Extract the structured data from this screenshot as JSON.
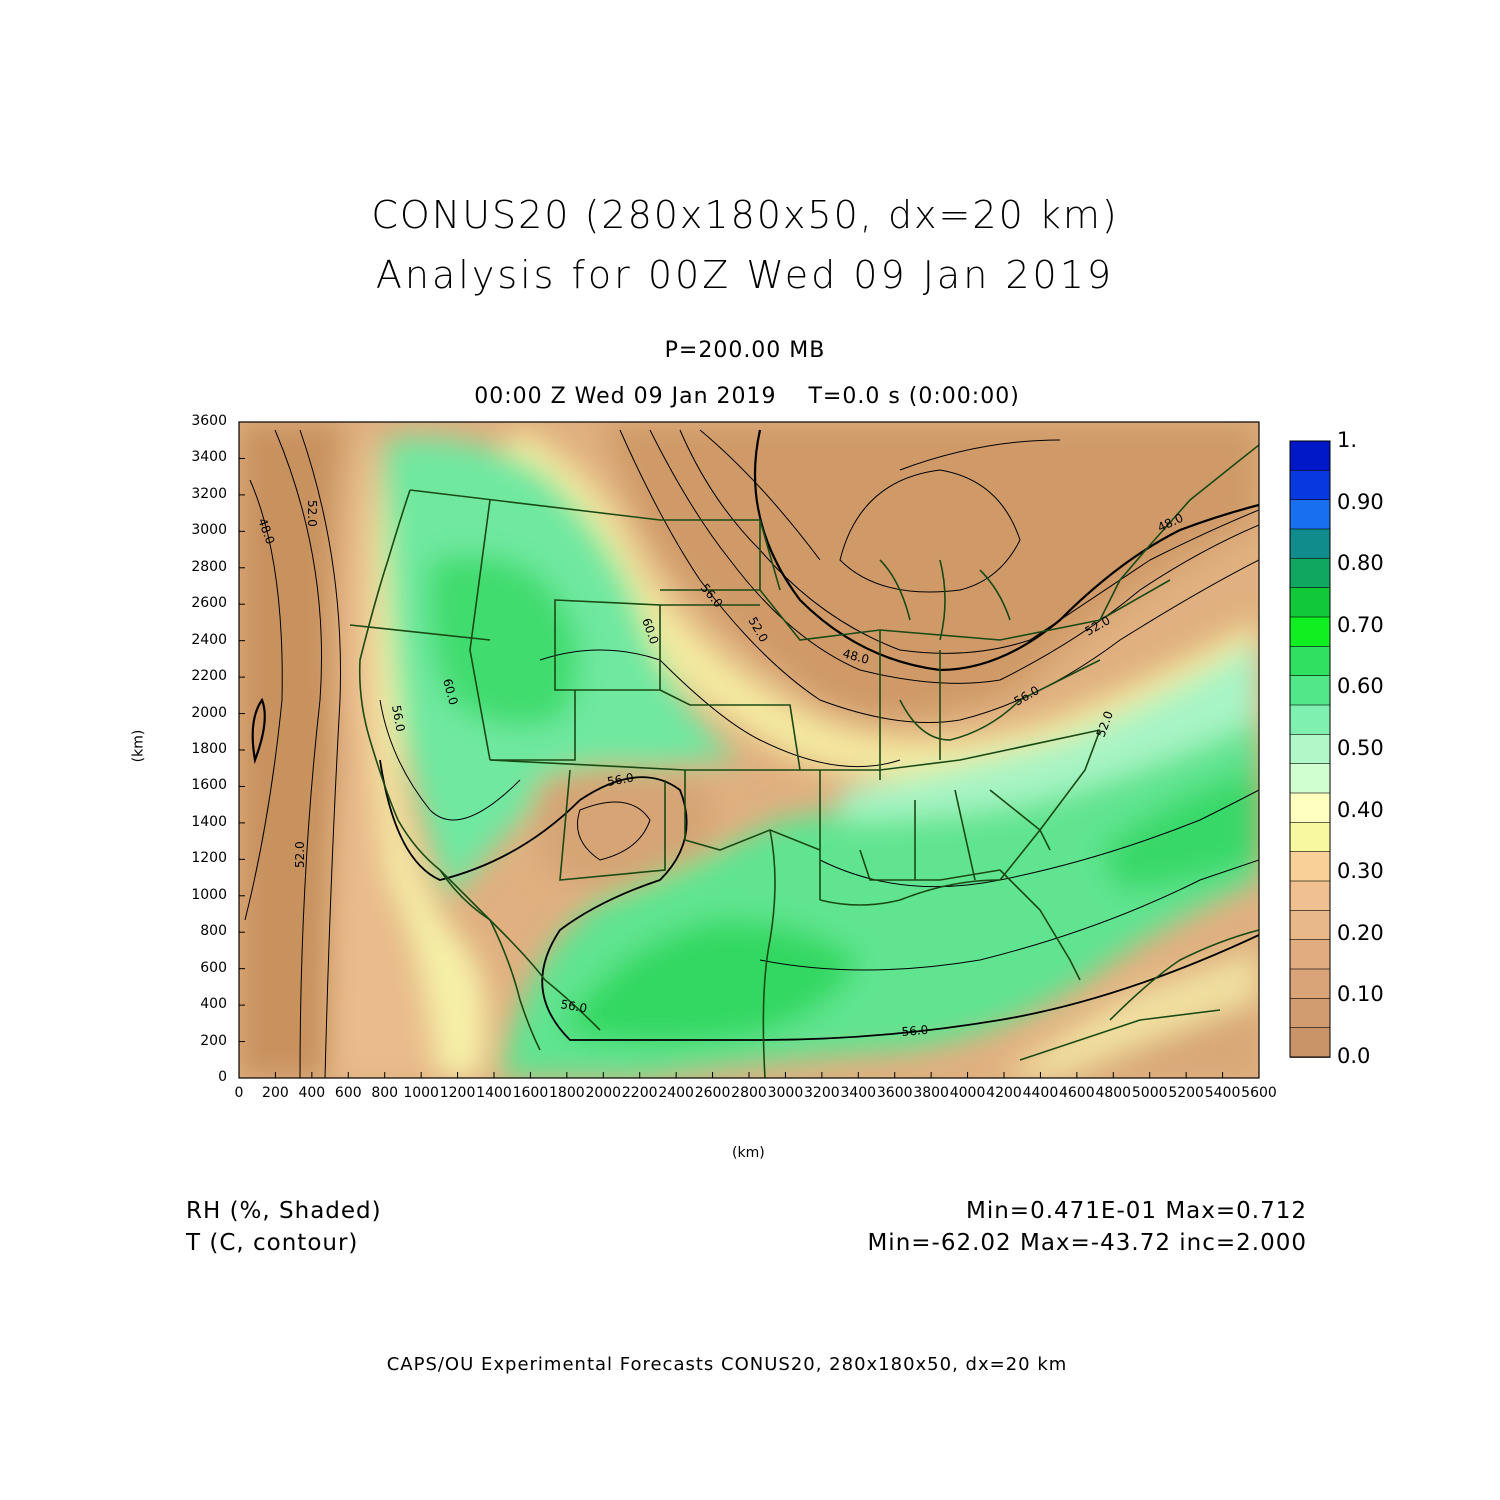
{
  "title": {
    "line1": "CONUS20 (280x180x50, dx=20 km)",
    "line2": "Analysis for 00Z Wed 09 Jan 2019"
  },
  "level": "P=200.00 MB",
  "valid_time": "00:00 Z Wed 09 Jan 2019    T=0.0 s (0:00:00)",
  "axes": {
    "x_label": "(km)",
    "y_label": "(km)",
    "x_ticks": [
      "0",
      "200",
      "400",
      "600",
      "800",
      "1000",
      "1200",
      "1400",
      "1600",
      "1800",
      "2000",
      "2200",
      "2400",
      "2600",
      "2800",
      "3000",
      "3200",
      "3400",
      "3600",
      "3800",
      "4000",
      "4200",
      "4400",
      "4600",
      "4800",
      "5000",
      "5200",
      "5400",
      "5600"
    ],
    "y_ticks": [
      "0",
      "200",
      "400",
      "600",
      "800",
      "1000",
      "1200",
      "1400",
      "1600",
      "1800",
      "2000",
      "2200",
      "2400",
      "2600",
      "2800",
      "3000",
      "3200",
      "3400",
      "3600"
    ]
  },
  "colorbar": {
    "labels": [
      "1.",
      "0.90",
      "0.80",
      "0.70",
      "0.60",
      "0.50",
      "0.40",
      "0.30",
      "0.20",
      "0.10",
      "0.0"
    ],
    "colors": [
      "#0018c8",
      "#0838e0",
      "#1870f0",
      "#108c8c",
      "#10a860",
      "#10c838",
      "#10f020",
      "#30e060",
      "#50e888",
      "#80f0b0",
      "#b0f8c8",
      "#d0ffd0",
      "#ffffc0",
      "#f8f8a0",
      "#f8d098",
      "#f0c090",
      "#e8b888",
      "#e0ac80",
      "#d8a478",
      "#d09c70",
      "#c89468"
    ]
  },
  "contour_labels": [
    "48.0",
    "52.0",
    "56.0",
    "60.0",
    "56.0",
    "52.0",
    "48.0",
    "56.0",
    "52.0",
    "56.0",
    "60.0",
    "56.0",
    "56.0",
    "52.0",
    "48.0",
    "52.0"
  ],
  "legend": {
    "var1": "RH (%, Shaded)",
    "var2": "T (C, contour)",
    "stat1": "Min=0.471E-01 Max=0.712",
    "stat2": "Min=-62.02 Max=-43.72 inc=2.000"
  },
  "footer": "CAPS/OU Experimental Forecasts  CONUS20, 280x180x50, dx=20 km",
  "colors": {
    "dry": "#d4a070",
    "moist": "#40e070",
    "boundary": "#1a4a14",
    "contour": "#000000"
  }
}
